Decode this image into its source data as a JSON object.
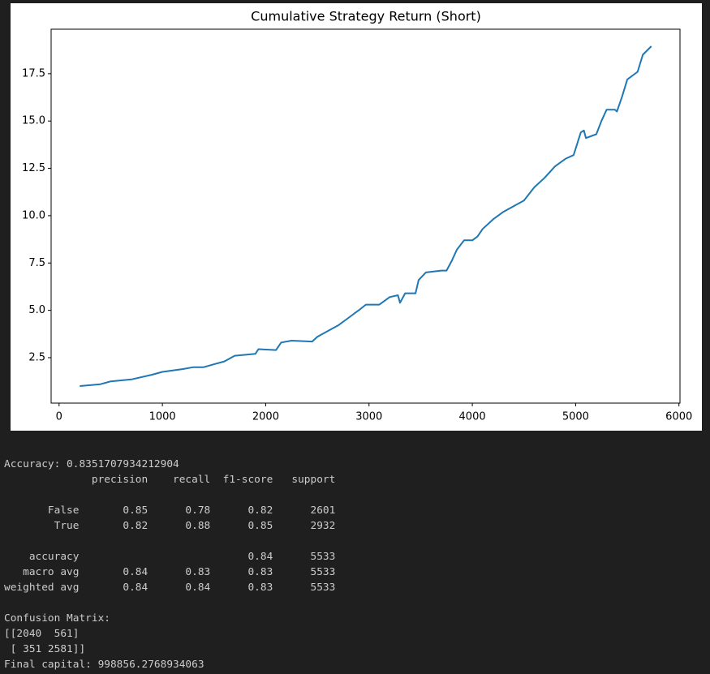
{
  "chart_data": {
    "type": "line",
    "title": "Cumulative Strategy Return (Short)",
    "x": [
      200,
      400,
      500,
      700,
      900,
      1000,
      1200,
      1300,
      1400,
      1500,
      1600,
      1700,
      1900,
      1930,
      2100,
      2150,
      2250,
      2450,
      2500,
      2600,
      2700,
      2800,
      2900,
      2970,
      3100,
      3200,
      3280,
      3300,
      3350,
      3450,
      3480,
      3550,
      3700,
      3750,
      3800,
      3850,
      3920,
      4000,
      4050,
      4100,
      4200,
      4300,
      4400,
      4500,
      4600,
      4700,
      4800,
      4900,
      4980,
      5050,
      5080,
      5100,
      5200,
      5250,
      5300,
      5380,
      5400,
      5450,
      5500,
      5600,
      5650,
      5733
    ],
    "values": [
      1.0,
      1.1,
      1.25,
      1.35,
      1.6,
      1.75,
      1.9,
      2.0,
      2.0,
      2.15,
      2.3,
      2.6,
      2.7,
      2.95,
      2.9,
      3.3,
      3.4,
      3.35,
      3.6,
      3.9,
      4.2,
      4.6,
      5.0,
      5.3,
      5.3,
      5.7,
      5.8,
      5.4,
      5.9,
      5.9,
      6.6,
      7.0,
      7.1,
      7.1,
      7.6,
      8.2,
      8.7,
      8.7,
      8.9,
      9.3,
      9.8,
      10.2,
      10.5,
      10.8,
      11.5,
      12.0,
      12.6,
      13.0,
      13.2,
      14.4,
      14.5,
      14.1,
      14.3,
      15.0,
      15.6,
      15.6,
      15.5,
      16.3,
      17.2,
      17.6,
      18.5,
      18.95
    ],
    "color": "#1f77b4",
    "xlim": [
      -77,
      6010
    ],
    "xticks": [
      0,
      1000,
      2000,
      3000,
      4000,
      5000,
      6000
    ],
    "ylim": [
      0.1,
      19.85
    ],
    "yticks": [
      2.5,
      {
        "value": 5,
        "label": "5.0"
      },
      7.5,
      {
        "value": 10,
        "label": "10.0"
      },
      12.5,
      {
        "value": 15,
        "label": "15.0"
      },
      17.5
    ],
    "grid": false
  },
  "output": {
    "blocks": [
      [
        "Accuracy: 0.8351707934212904",
        "              precision    recall  f1-score   support"
      ],
      [
        "       False       0.85      0.78      0.82      2601",
        "        True       0.82      0.88      0.85      2932"
      ],
      [
        "    accuracy                           0.84      5533",
        "   macro avg       0.84      0.83      0.83      5533",
        "weighted avg       0.84      0.84      0.83      5533"
      ],
      [
        "Confusion Matrix:",
        "[[2040  561]",
        " [ 351 2581]]",
        "Final capital: 998856.2768934063"
      ]
    ]
  }
}
